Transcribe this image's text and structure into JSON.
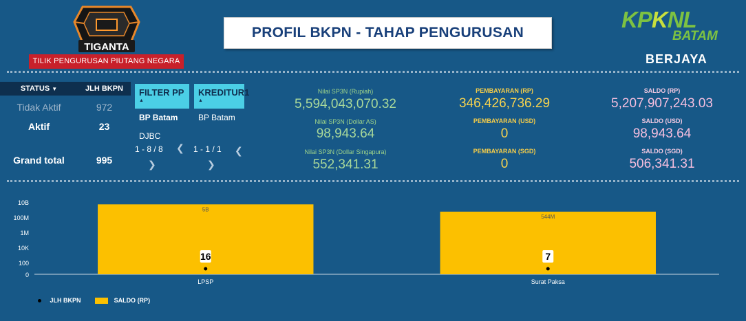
{
  "header": {
    "logo_name": "TIGANTA",
    "logo_subtitle": "TILIK PENGURUSAN PIUTANG NEGARA",
    "title": "PROFIL BKPN - TAHAP PENGURUSAN",
    "brand_kpknl": "KPKNL",
    "brand_batam": "BATAM",
    "brand_slogan": "BERJAYA"
  },
  "status_table": {
    "headers": {
      "status": "STATUS",
      "count": "JLH BKPN"
    },
    "sort_icon": "caret-down-icon",
    "rows": [
      {
        "status": "Tidak Aktif",
        "count": "972"
      },
      {
        "status": "Aktif",
        "count": "23"
      }
    ],
    "total": {
      "label": "Grand total",
      "count": "995"
    }
  },
  "filters": [
    {
      "label": "FILTER PP",
      "options": [
        "BP Batam",
        "DJBC"
      ],
      "pager": "1 - 8 / 8"
    },
    {
      "label": "KREDITUR1",
      "options": [
        "BP Batam"
      ],
      "pager": "1 - 1 / 1"
    }
  ],
  "metrics": {
    "sp3n": [
      {
        "label": "Nilai SP3N (Rupiah)",
        "value": "5,594,043,070.32"
      },
      {
        "label": "Nilai SP3N (Dollar AS)",
        "value": "98,943.64"
      },
      {
        "label": "Nilai SP3N (Dollar Singapura)",
        "value": "552,341.31"
      }
    ],
    "pembayaran": [
      {
        "label": "PEMBAYARAN (RP)",
        "value": "346,426,736.29"
      },
      {
        "label": "PEMBAYARAN (USD)",
        "value": "0"
      },
      {
        "label": "PEMBAYARAN (SGD)",
        "value": "0"
      }
    ],
    "saldo": [
      {
        "label": "SALDO (RP)",
        "value": "5,207,907,243.03"
      },
      {
        "label": "SALDO (USD)",
        "value": "98,943.64"
      },
      {
        "label": "SALDO (SGD)",
        "value": "506,341.31"
      }
    ]
  },
  "colors": {
    "background": "#175887",
    "bar": "#fcc000",
    "filter": "#4bcfe6",
    "header_red": "#c8202a"
  },
  "chart_data": {
    "type": "bar",
    "y_scale": "log",
    "y_ticks": [
      "10B",
      "100M",
      "1M",
      "10K",
      "100",
      "0"
    ],
    "categories": [
      "LPSP",
      "Surat Paksa"
    ],
    "series": [
      {
        "name": "SALDO (RP)",
        "type": "bar",
        "values": [
          5000000000,
          544000000
        ],
        "labels": [
          "5B",
          "544M"
        ],
        "color": "#fcc000"
      },
      {
        "name": "JLH BKPN",
        "type": "point",
        "values": [
          16,
          7
        ],
        "labels": [
          "16",
          "7"
        ],
        "color": "#000000"
      }
    ],
    "legend": [
      "JLH BKPN",
      "SALDO (RP)"
    ],
    "legend_position": "bottom-left"
  }
}
